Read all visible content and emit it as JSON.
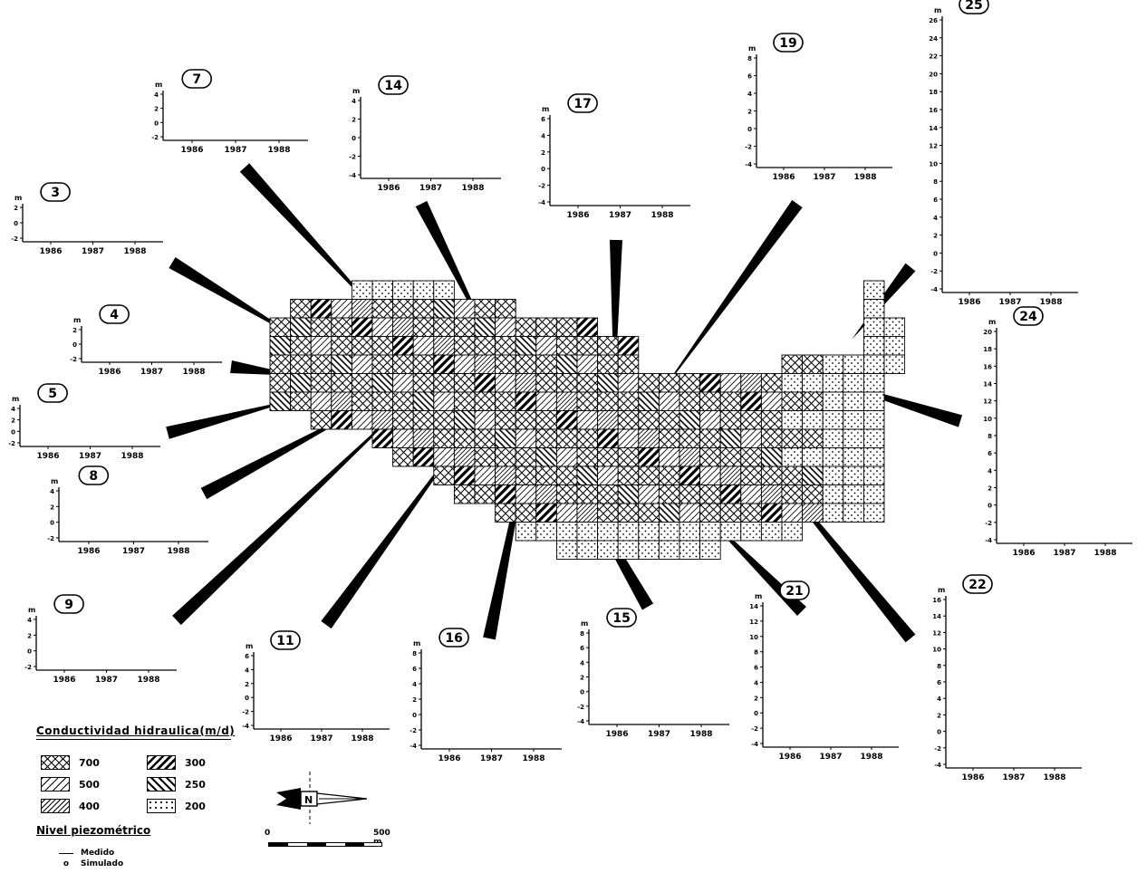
{
  "legend": {
    "conductivity_title": "Conductividad  hidraulica(m/d)",
    "classes": [
      {
        "label": "700",
        "pattern": "crosshatch"
      },
      {
        "label": "500",
        "pattern": "diag-right-wide"
      },
      {
        "label": "400",
        "pattern": "diag-right-mid"
      },
      {
        "label": "300",
        "pattern": "diag-right-bold"
      },
      {
        "label": "250",
        "pattern": "diag-left"
      },
      {
        "label": "200",
        "pattern": "dots"
      }
    ],
    "level_title": "Nivel piezométrico",
    "measured_label": "Medido",
    "simulated_label": "Simulado"
  },
  "north_label": "N",
  "scale": {
    "start": "0",
    "end": "500 m"
  },
  "hydrographs": [
    {
      "id": "7",
      "y_unit": "m",
      "y_ticks": [
        "4",
        "2",
        "0",
        "-2"
      ],
      "x_ticks": [
        "1986",
        "1987",
        "1988"
      ]
    },
    {
      "id": "14",
      "y_unit": "m",
      "y_ticks": [
        "4",
        "2",
        "0",
        "-2",
        "-4"
      ],
      "x_ticks": [
        "1986",
        "1987",
        "1988"
      ]
    },
    {
      "id": "17",
      "y_unit": "m",
      "y_ticks": [
        "6",
        "4",
        "2",
        "0",
        "-2",
        "-4"
      ],
      "x_ticks": [
        "1986",
        "1987",
        "1988"
      ]
    },
    {
      "id": "19",
      "y_unit": "m",
      "y_ticks": [
        "8",
        "6",
        "4",
        "2",
        "0",
        "-2",
        "-4"
      ],
      "x_ticks": [
        "1986",
        "1987",
        "1988"
      ]
    },
    {
      "id": "25",
      "y_unit": "m",
      "y_ticks": [
        "26",
        "24",
        "22",
        "20",
        "18",
        "16",
        "14",
        "12",
        "10",
        "8",
        "6",
        "4",
        "2",
        "0",
        "-2",
        "-4"
      ],
      "x_ticks": [
        "1986",
        "1987",
        "1988"
      ]
    },
    {
      "id": "3",
      "y_unit": "m",
      "y_ticks": [
        "2",
        "0",
        "-2"
      ],
      "x_ticks": [
        "1986",
        "1987",
        "1988"
      ]
    },
    {
      "id": "4",
      "y_unit": "m",
      "y_ticks": [
        "2",
        "0",
        "-2"
      ],
      "x_ticks": [
        "1986",
        "1987",
        "1988"
      ]
    },
    {
      "id": "5",
      "y_unit": "m",
      "y_ticks": [
        "4",
        "2",
        "0",
        "-2"
      ],
      "x_ticks": [
        "1986",
        "1987",
        "1988"
      ]
    },
    {
      "id": "8",
      "y_unit": "m",
      "y_ticks": [
        "4",
        "2",
        "0",
        "-2"
      ],
      "x_ticks": [
        "1986",
        "1987",
        "1988"
      ]
    },
    {
      "id": "24",
      "y_unit": "m",
      "y_ticks": [
        "20",
        "18",
        "16",
        "14",
        "12",
        "10",
        "8",
        "6",
        "4",
        "2",
        "0",
        "-2",
        "-4"
      ],
      "x_ticks": [
        "1986",
        "1987",
        "1988"
      ]
    },
    {
      "id": "9",
      "y_unit": "m",
      "y_ticks": [
        "4",
        "2",
        "0",
        "-2"
      ],
      "x_ticks": [
        "1986",
        "1987",
        "1988"
      ]
    },
    {
      "id": "11",
      "y_unit": "m",
      "y_ticks": [
        "6",
        "4",
        "2",
        "0",
        "-2",
        "-4"
      ],
      "x_ticks": [
        "1986",
        "1987",
        "1988"
      ]
    },
    {
      "id": "16",
      "y_unit": "m",
      "y_ticks": [
        "8",
        "6",
        "4",
        "2",
        "0",
        "-2",
        "-4"
      ],
      "x_ticks": [
        "1986",
        "1987",
        "1988"
      ]
    },
    {
      "id": "15",
      "y_unit": "m",
      "y_ticks": [
        "8",
        "6",
        "4",
        "2",
        "0",
        "-2",
        "-4"
      ],
      "x_ticks": [
        "1986",
        "1987",
        "1988"
      ]
    },
    {
      "id": "21",
      "y_unit": "m",
      "y_ticks": [
        "14",
        "12",
        "10",
        "8",
        "6",
        "4",
        "2",
        "0",
        "-2",
        "-4"
      ],
      "x_ticks": [
        "1986",
        "1987",
        "1988"
      ]
    },
    {
      "id": "22",
      "y_unit": "m",
      "y_ticks": [
        "16",
        "14",
        "12",
        "10",
        "8",
        "6",
        "4",
        "2",
        "0",
        "-2",
        "-4"
      ],
      "x_ticks": [
        "1986",
        "1987",
        "1988"
      ]
    }
  ],
  "colors": {
    "ink": "#000000",
    "paper": "#ffffff"
  }
}
